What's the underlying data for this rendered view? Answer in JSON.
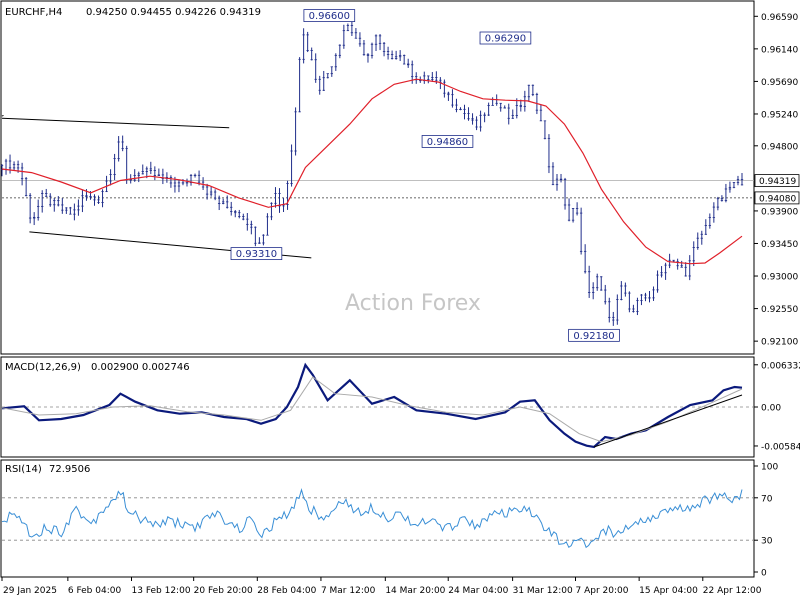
{
  "header": {
    "symbol": "EURCHF,H4",
    "ohlc": "0.94250 0.94455 0.94226 0.94319"
  },
  "watermark": "Action Forex",
  "colors": {
    "price": "#1f2d8a",
    "ma": "#e0202a",
    "macd": "#0b1a7c",
    "signal": "#aaaaaa",
    "rsi": "#3a8fd6",
    "trendline": "#000000",
    "grid": "#888888"
  },
  "chart_data": [
    {
      "type": "candlestick",
      "name": "main",
      "ylim": [
        0.9195,
        0.9676
      ],
      "y_ticks": [
        "0.96590",
        "0.96140",
        "0.95690",
        "0.95240",
        "0.94800",
        "0.94319",
        "0.94080",
        "0.93900",
        "0.93450",
        "0.93000",
        "0.92550",
        "0.92100"
      ],
      "current_price": {
        "value": 0.94319,
        "label": "0.94319"
      },
      "level_line": {
        "value": 0.9408,
        "label": "0.94080"
      },
      "annotations": [
        {
          "label": "0.96600",
          "x": 0.4423,
          "price": 0.966
        },
        {
          "label": "0.96290",
          "x": 0.6803,
          "price": 0.9629
        },
        {
          "label": "0.94860",
          "x": 0.602,
          "price": 0.9486
        },
        {
          "label": "0.93310",
          "x": 0.3438,
          "price": 0.9331
        },
        {
          "label": "0.92180",
          "x": 0.8,
          "price": 0.9218
        }
      ],
      "price_path": [
        [
          0.0,
          0.9453
        ],
        [
          0.012,
          0.9455
        ],
        [
          0.024,
          0.945
        ],
        [
          0.04,
          0.9375
        ],
        [
          0.055,
          0.941
        ],
        [
          0.075,
          0.9395
        ],
        [
          0.095,
          0.9385
        ],
        [
          0.11,
          0.941
        ],
        [
          0.13,
          0.9405
        ],
        [
          0.145,
          0.944
        ],
        [
          0.16,
          0.9495
        ],
        [
          0.168,
          0.943
        ],
        [
          0.185,
          0.9445
        ],
        [
          0.205,
          0.944
        ],
        [
          0.225,
          0.943
        ],
        [
          0.245,
          0.9425
        ],
        [
          0.26,
          0.9445
        ],
        [
          0.275,
          0.942
        ],
        [
          0.295,
          0.94
        ],
        [
          0.315,
          0.939
        ],
        [
          0.33,
          0.938
        ],
        [
          0.345,
          0.9345
        ],
        [
          0.355,
          0.9365
        ],
        [
          0.368,
          0.942
        ],
        [
          0.378,
          0.939
        ],
        [
          0.385,
          0.942
        ],
        [
          0.395,
          0.951
        ],
        [
          0.405,
          0.964
        ],
        [
          0.415,
          0.961
        ],
        [
          0.428,
          0.956
        ],
        [
          0.44,
          0.958
        ],
        [
          0.452,
          0.961
        ],
        [
          0.465,
          0.965
        ],
        [
          0.478,
          0.963
        ],
        [
          0.49,
          0.96
        ],
        [
          0.505,
          0.963
        ],
        [
          0.52,
          0.96
        ],
        [
          0.535,
          0.961
        ],
        [
          0.55,
          0.9585
        ],
        [
          0.565,
          0.957
        ],
        [
          0.58,
          0.9575
        ],
        [
          0.595,
          0.956
        ],
        [
          0.61,
          0.954
        ],
        [
          0.625,
          0.9525
        ],
        [
          0.64,
          0.9505
        ],
        [
          0.655,
          0.953
        ],
        [
          0.67,
          0.9545
        ],
        [
          0.685,
          0.952
        ],
        [
          0.7,
          0.9535
        ],
        [
          0.712,
          0.956
        ],
        [
          0.725,
          0.953
        ],
        [
          0.735,
          0.948
        ],
        [
          0.745,
          0.942
        ],
        [
          0.755,
          0.944
        ],
        [
          0.765,
          0.937
        ],
        [
          0.775,
          0.94
        ],
        [
          0.785,
          0.932
        ],
        [
          0.795,
          0.9265
        ],
        [
          0.805,
          0.93
        ],
        [
          0.815,
          0.926
        ],
        [
          0.825,
          0.924
        ],
        [
          0.838,
          0.929
        ],
        [
          0.85,
          0.924
        ],
        [
          0.862,
          0.928
        ],
        [
          0.872,
          0.926
        ],
        [
          0.885,
          0.93
        ],
        [
          0.9,
          0.932
        ],
        [
          0.912,
          0.9315
        ],
        [
          0.925,
          0.9305
        ],
        [
          0.938,
          0.9345
        ],
        [
          0.95,
          0.9365
        ],
        [
          0.96,
          0.9395
        ],
        [
          0.972,
          0.9405
        ],
        [
          0.985,
          0.9425
        ],
        [
          1.0,
          0.9432
        ]
      ],
      "ma_path": [
        [
          0.0,
          0.9448
        ],
        [
          0.04,
          0.9443
        ],
        [
          0.08,
          0.943
        ],
        [
          0.12,
          0.9415
        ],
        [
          0.16,
          0.9432
        ],
        [
          0.2,
          0.9438
        ],
        [
          0.24,
          0.9433
        ],
        [
          0.28,
          0.9425
        ],
        [
          0.32,
          0.9408
        ],
        [
          0.36,
          0.9395
        ],
        [
          0.385,
          0.94
        ],
        [
          0.41,
          0.945
        ],
        [
          0.44,
          0.948
        ],
        [
          0.47,
          0.951
        ],
        [
          0.5,
          0.9545
        ],
        [
          0.53,
          0.9565
        ],
        [
          0.56,
          0.9572
        ],
        [
          0.59,
          0.9568
        ],
        [
          0.62,
          0.9555
        ],
        [
          0.65,
          0.9545
        ],
        [
          0.68,
          0.9543
        ],
        [
          0.71,
          0.9542
        ],
        [
          0.735,
          0.9535
        ],
        [
          0.76,
          0.951
        ],
        [
          0.785,
          0.947
        ],
        [
          0.81,
          0.942
        ],
        [
          0.84,
          0.9375
        ],
        [
          0.87,
          0.934
        ],
        [
          0.9,
          0.932
        ],
        [
          0.93,
          0.9317
        ],
        [
          0.95,
          0.9318
        ],
        [
          0.97,
          0.9332
        ],
        [
          1.0,
          0.9355
        ]
      ],
      "trendlines": [
        {
          "points": [
            [
              0.0,
              0.9521
            ],
            [
              0.002,
              0.9522
            ]
          ]
        },
        {
          "points": [
            [
              0.0,
              0.9518
            ],
            [
              0.307,
              0.9505
            ]
          ]
        },
        {
          "points": [
            [
              0.037,
              0.9361
            ],
            [
              0.418,
              0.9325
            ]
          ]
        }
      ]
    },
    {
      "type": "line",
      "name": "MACD(12,26,9)",
      "header_values": "0.002900 0.002746",
      "ylim": [
        -0.0072,
        0.0072
      ],
      "y_ticks": [
        "0.006332",
        "0.00",
        "-0.005845"
      ],
      "series": [
        {
          "name": "macd",
          "points": [
            [
              0.0,
              -0.0002
            ],
            [
              0.03,
              0.0001
            ],
            [
              0.05,
              -0.002
            ],
            [
              0.08,
              -0.0018
            ],
            [
              0.11,
              -0.0012
            ],
            [
              0.145,
              0.0003
            ],
            [
              0.16,
              0.002
            ],
            [
              0.18,
              0.0008
            ],
            [
              0.21,
              -0.0005
            ],
            [
              0.24,
              -0.001
            ],
            [
              0.27,
              -0.0008
            ],
            [
              0.3,
              -0.0015
            ],
            [
              0.33,
              -0.0018
            ],
            [
              0.35,
              -0.0025
            ],
            [
              0.37,
              -0.0018
            ],
            [
              0.385,
              0.0
            ],
            [
              0.4,
              0.003
            ],
            [
              0.41,
              0.0063
            ],
            [
              0.42,
              0.0048
            ],
            [
              0.44,
              0.001
            ],
            [
              0.47,
              0.004
            ],
            [
              0.5,
              0.0005
            ],
            [
              0.53,
              0.0015
            ],
            [
              0.56,
              -0.0005
            ],
            [
              0.6,
              -0.001
            ],
            [
              0.64,
              -0.0018
            ],
            [
              0.68,
              -0.0008
            ],
            [
              0.7,
              0.0008
            ],
            [
              0.72,
              0.001
            ],
            [
              0.74,
              -0.002
            ],
            [
              0.76,
              -0.004
            ],
            [
              0.775,
              -0.0052
            ],
            [
              0.79,
              -0.0058
            ],
            [
              0.8,
              -0.006
            ],
            [
              0.815,
              -0.0045
            ],
            [
              0.83,
              -0.0048
            ],
            [
              0.85,
              -0.004
            ],
            [
              0.87,
              -0.0035
            ],
            [
              0.9,
              -0.0015
            ],
            [
              0.93,
              0.0003
            ],
            [
              0.96,
              0.001
            ],
            [
              0.975,
              0.0025
            ],
            [
              0.99,
              0.003
            ],
            [
              1.0,
              0.0029
            ]
          ]
        },
        {
          "name": "signal",
          "points": [
            [
              0.0,
              -0.0001
            ],
            [
              0.05,
              -0.0012
            ],
            [
              0.1,
              -0.001
            ],
            [
              0.15,
              0.0
            ],
            [
              0.2,
              0.0002
            ],
            [
              0.25,
              -0.0007
            ],
            [
              0.3,
              -0.0012
            ],
            [
              0.35,
              -0.002
            ],
            [
              0.39,
              -0.0005
            ],
            [
              0.42,
              0.0045
            ],
            [
              0.45,
              0.002
            ],
            [
              0.5,
              0.0015
            ],
            [
              0.55,
              0.0002
            ],
            [
              0.6,
              -0.0008
            ],
            [
              0.65,
              -0.0012
            ],
            [
              0.7,
              0.0
            ],
            [
              0.74,
              -0.001
            ],
            [
              0.78,
              -0.004
            ],
            [
              0.81,
              -0.0052
            ],
            [
              0.85,
              -0.0042
            ],
            [
              0.9,
              -0.0022
            ],
            [
              0.95,
              0.0002
            ],
            [
              1.0,
              0.0027
            ]
          ]
        }
      ],
      "trendline": {
        "points": [
          [
            0.8,
            -0.006
          ],
          [
            1.0,
            0.0018
          ]
        ]
      }
    },
    {
      "type": "line",
      "name": "RSI(14)",
      "header_values": "72.9506",
      "ylim": [
        0,
        100
      ],
      "y_ticks": [
        "100",
        "70",
        "30",
        "0"
      ],
      "levels": [
        70,
        30
      ],
      "series": [
        {
          "name": "rsi",
          "points": [
            [
              0.0,
              48
            ],
            [
              0.02,
              55
            ],
            [
              0.04,
              35
            ],
            [
              0.06,
              42
            ],
            [
              0.08,
              38
            ],
            [
              0.1,
              60
            ],
            [
              0.12,
              45
            ],
            [
              0.14,
              62
            ],
            [
              0.16,
              75
            ],
            [
              0.175,
              55
            ],
            [
              0.2,
              45
            ],
            [
              0.23,
              48
            ],
            [
              0.26,
              42
            ],
            [
              0.29,
              55
            ],
            [
              0.32,
              40
            ],
            [
              0.34,
              52
            ],
            [
              0.35,
              32
            ],
            [
              0.37,
              48
            ],
            [
              0.39,
              55
            ],
            [
              0.405,
              78
            ],
            [
              0.415,
              60
            ],
            [
              0.44,
              50
            ],
            [
              0.46,
              70
            ],
            [
              0.48,
              55
            ],
            [
              0.5,
              62
            ],
            [
              0.52,
              52
            ],
            [
              0.54,
              55
            ],
            [
              0.56,
              45
            ],
            [
              0.58,
              48
            ],
            [
              0.6,
              40
            ],
            [
              0.62,
              50
            ],
            [
              0.64,
              45
            ],
            [
              0.66,
              52
            ],
            [
              0.68,
              55
            ],
            [
              0.7,
              58
            ],
            [
              0.72,
              55
            ],
            [
              0.735,
              40
            ],
            [
              0.75,
              32
            ],
            [
              0.765,
              22
            ],
            [
              0.78,
              30
            ],
            [
              0.8,
              25
            ],
            [
              0.815,
              40
            ],
            [
              0.83,
              35
            ],
            [
              0.85,
              45
            ],
            [
              0.87,
              50
            ],
            [
              0.89,
              55
            ],
            [
              0.91,
              58
            ],
            [
              0.93,
              62
            ],
            [
              0.95,
              68
            ],
            [
              0.97,
              72
            ],
            [
              0.985,
              70
            ],
            [
              1.0,
              73
            ]
          ]
        }
      ]
    }
  ],
  "x_axis": {
    "labels": [
      {
        "text": "29 Jan 2025",
        "x": 0.0
      },
      {
        "text": "6 Feb 04:00",
        "x": 0.089
      },
      {
        "text": "13 Feb 12:00",
        "x": 0.175
      },
      {
        "text": "20 Feb 20:00",
        "x": 0.259
      },
      {
        "text": "28 Feb 04:00",
        "x": 0.345
      },
      {
        "text": "7 Mar 12:00",
        "x": 0.431
      },
      {
        "text": "14 Mar 20:00",
        "x": 0.518
      },
      {
        "text": "24 Mar 04:00",
        "x": 0.603
      },
      {
        "text": "31 Mar 12:00",
        "x": 0.69
      },
      {
        "text": "7 Apr 20:00",
        "x": 0.775
      },
      {
        "text": "15 Apr 04:00",
        "x": 0.861
      },
      {
        "text": "22 Apr 12:00",
        "x": 0.947
      }
    ]
  }
}
